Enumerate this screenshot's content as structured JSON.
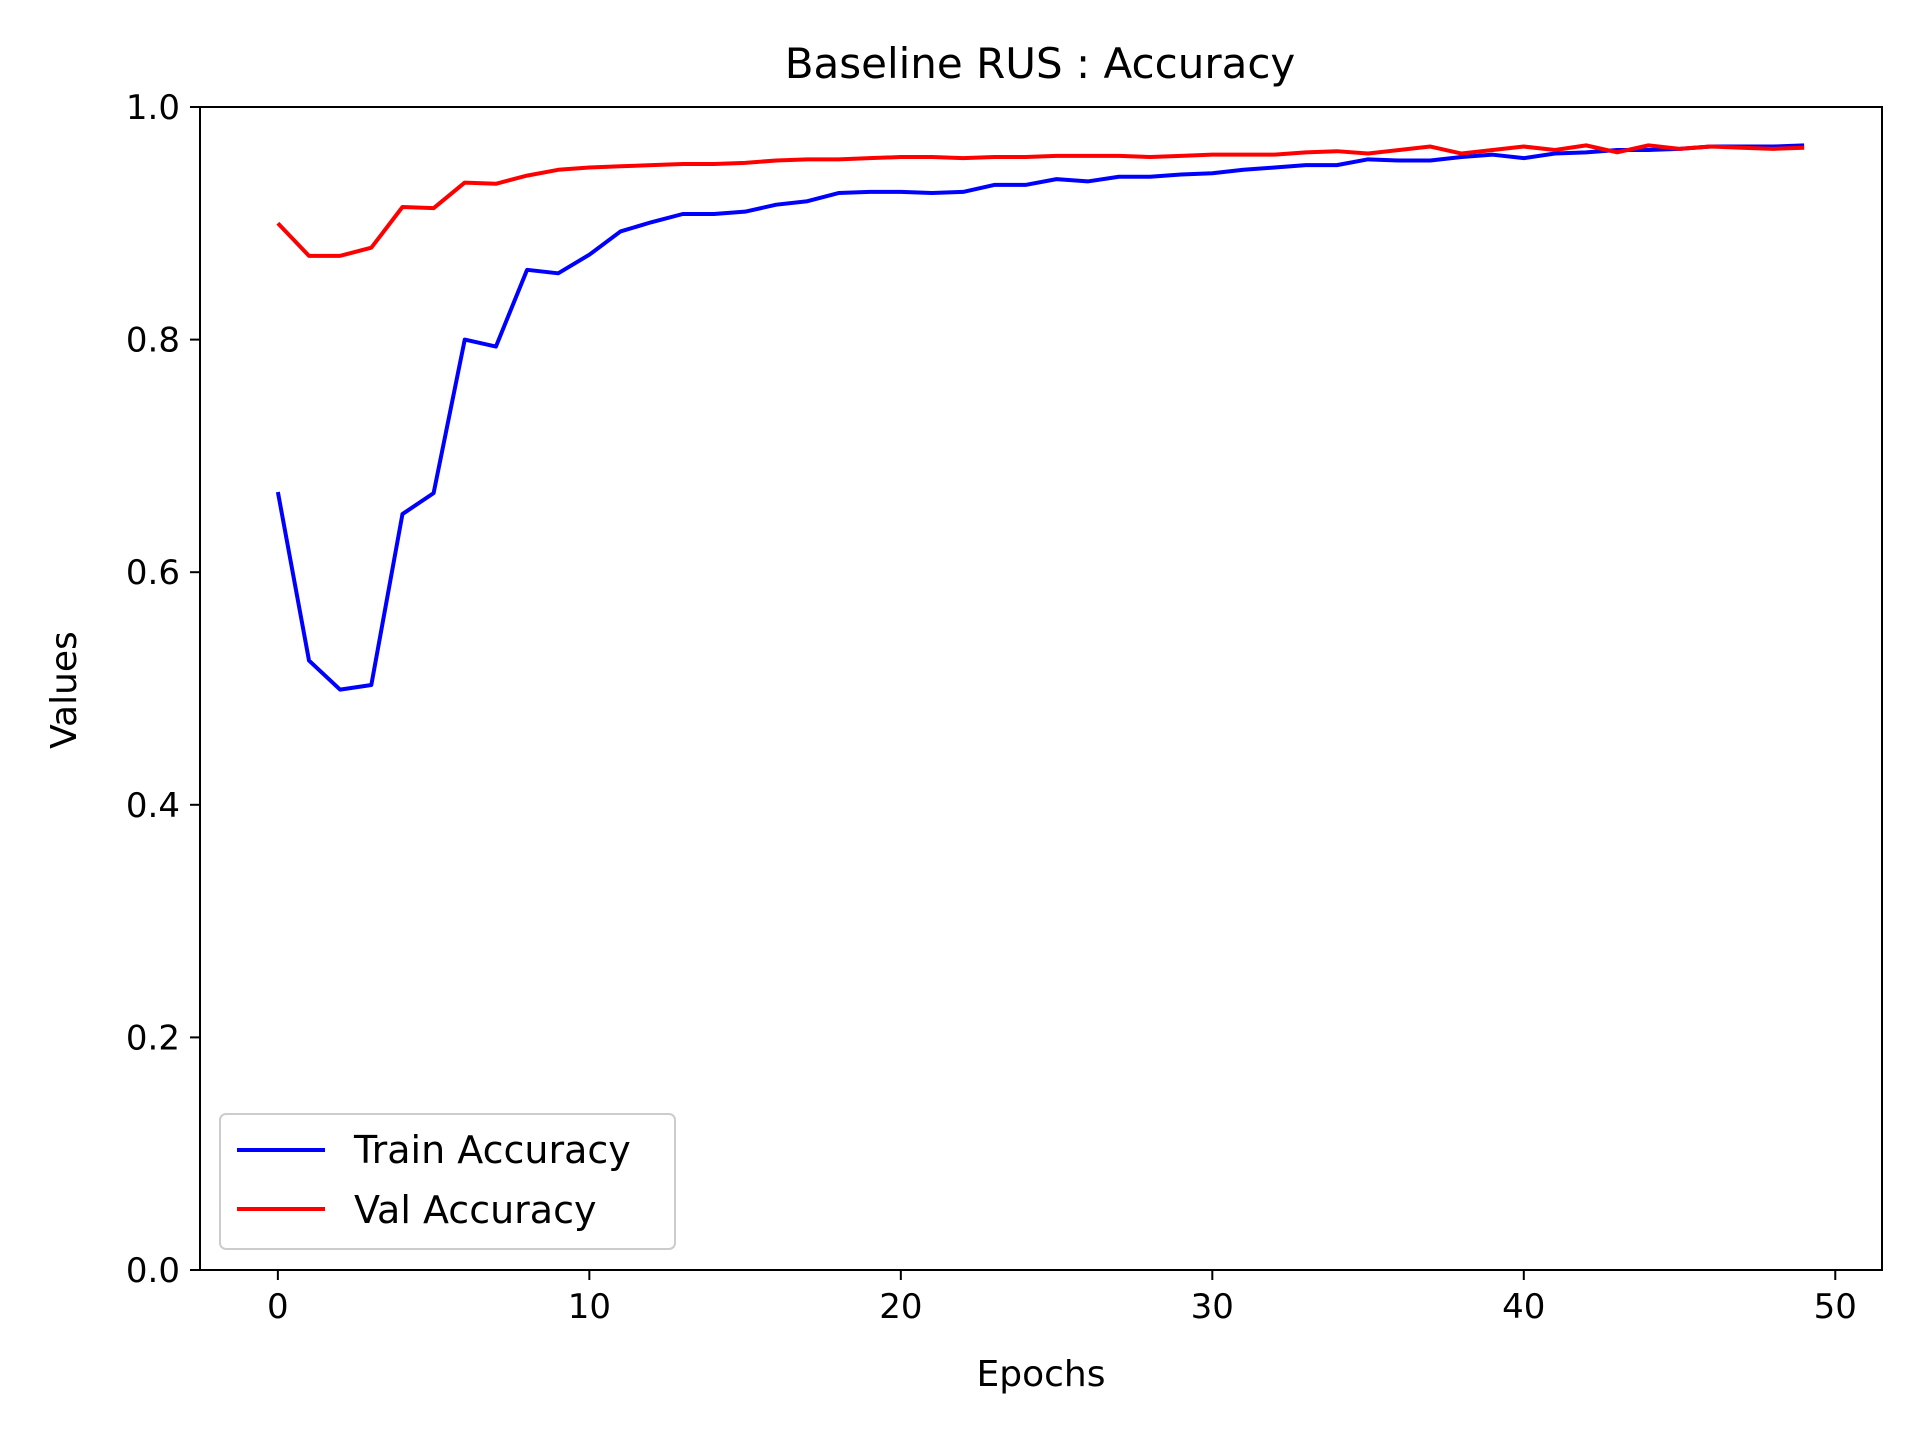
{
  "chart_data": {
    "type": "line",
    "title": "Baseline RUS : Accuracy",
    "xlabel": "Epochs",
    "ylabel": "Values",
    "xlim": [
      -2.5,
      51.5
    ],
    "ylim": [
      0.0,
      1.0
    ],
    "xticks": [
      0,
      10,
      20,
      30,
      40,
      50
    ],
    "xtick_labels": [
      "0",
      "10",
      "20",
      "30",
      "40",
      "50"
    ],
    "yticks": [
      0.0,
      0.2,
      0.4,
      0.6,
      0.8,
      1.0
    ],
    "ytick_labels": [
      "0.0",
      "0.2",
      "0.4",
      "0.6",
      "0.8",
      "1.0"
    ],
    "grid": false,
    "legend_position": "lower-left",
    "x": [
      0,
      1,
      2,
      3,
      4,
      5,
      6,
      7,
      8,
      9,
      10,
      11,
      12,
      13,
      14,
      15,
      16,
      17,
      18,
      19,
      20,
      21,
      22,
      23,
      24,
      25,
      26,
      27,
      28,
      29,
      30,
      31,
      32,
      33,
      34,
      35,
      36,
      37,
      38,
      39,
      40,
      41,
      42,
      43,
      44,
      45,
      46,
      47,
      48,
      49
    ],
    "series": [
      {
        "name": "Train Accuracy",
        "color": "#0000ff",
        "values": [
          0.669,
          0.524,
          0.499,
          0.503,
          0.65,
          0.668,
          0.8,
          0.794,
          0.86,
          0.857,
          0.873,
          0.893,
          0.901,
          0.908,
          0.908,
          0.91,
          0.916,
          0.919,
          0.926,
          0.927,
          0.927,
          0.926,
          0.927,
          0.933,
          0.933,
          0.938,
          0.936,
          0.94,
          0.94,
          0.942,
          0.943,
          0.946,
          0.948,
          0.95,
          0.95,
          0.955,
          0.954,
          0.954,
          0.957,
          0.959,
          0.956,
          0.96,
          0.961,
          0.963,
          0.963,
          0.964,
          0.966,
          0.966,
          0.966,
          0.967
        ]
      },
      {
        "name": "Val Accuracy",
        "color": "#ff0000",
        "values": [
          0.9,
          0.872,
          0.872,
          0.879,
          0.914,
          0.913,
          0.935,
          0.934,
          0.941,
          0.946,
          0.948,
          0.949,
          0.95,
          0.951,
          0.951,
          0.952,
          0.954,
          0.955,
          0.955,
          0.956,
          0.957,
          0.957,
          0.956,
          0.957,
          0.957,
          0.958,
          0.958,
          0.958,
          0.957,
          0.958,
          0.959,
          0.959,
          0.959,
          0.961,
          0.962,
          0.96,
          0.963,
          0.966,
          0.96,
          0.963,
          0.966,
          0.963,
          0.967,
          0.961,
          0.967,
          0.964,
          0.966,
          0.965,
          0.964,
          0.965
        ]
      }
    ]
  }
}
